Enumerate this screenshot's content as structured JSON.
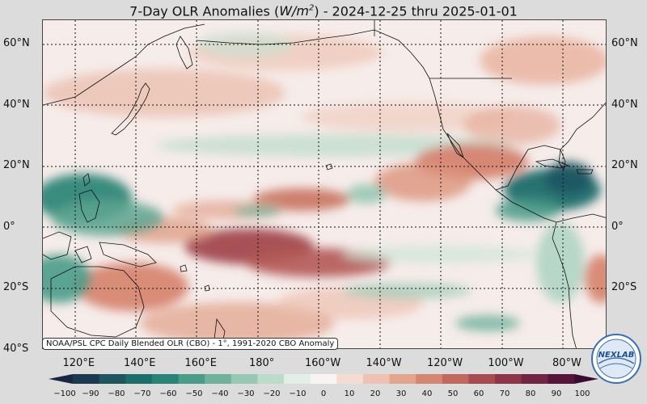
{
  "title": {
    "prefix": "7-Day OLR Anomalies (",
    "unit_base": "W/m",
    "unit_exp": "2",
    "suffix": ") - 2024-12-25 thru 2025-01-01"
  },
  "map": {
    "lat_labels": [
      "60°N",
      "40°N",
      "20°N",
      "0°",
      "20°S",
      "40°S"
    ],
    "lat_values": [
      60,
      40,
      20,
      0,
      -20,
      -40
    ],
    "lon_labels": [
      "120°E",
      "140°E",
      "160°E",
      "180°",
      "160°W",
      "140°W",
      "120°W",
      "100°W",
      "80°W"
    ],
    "lon_values": [
      120,
      140,
      160,
      180,
      200,
      220,
      240,
      260,
      280
    ],
    "lon_range": [
      108,
      293
    ],
    "lat_range": [
      -40,
      68
    ],
    "gridlines": true
  },
  "credit": "NOAA/PSL CPC Daily Blended OLR (CBO) - 1°, 1991-2020 CBO Anomaly",
  "colorbar": {
    "ticks": [
      "−100",
      "−90",
      "−80",
      "−70",
      "−60",
      "−50",
      "−40",
      "−30",
      "−20",
      "−10",
      "0",
      "10",
      "20",
      "30",
      "40",
      "50",
      "60",
      "70",
      "80",
      "90",
      "100"
    ],
    "colors": [
      "#172641",
      "#1b3a52",
      "#1e5560",
      "#1c6e6c",
      "#2b8377",
      "#4a9b88",
      "#6fb29c",
      "#96c8b2",
      "#bcdcca",
      "#e2efe8",
      "#f8f4f2",
      "#f5dcd3",
      "#eec2b2",
      "#e4a590",
      "#d58672",
      "#c2685e",
      "#a94c52",
      "#8e3549",
      "#722443",
      "#55153b",
      "#3b0c33"
    ]
  },
  "logo_text": "NEXLAB",
  "colors": {
    "background": "#dcdcdc",
    "neutral": "#f8f4f2",
    "positive": "#c2685e",
    "negative": "#2b8377"
  }
}
